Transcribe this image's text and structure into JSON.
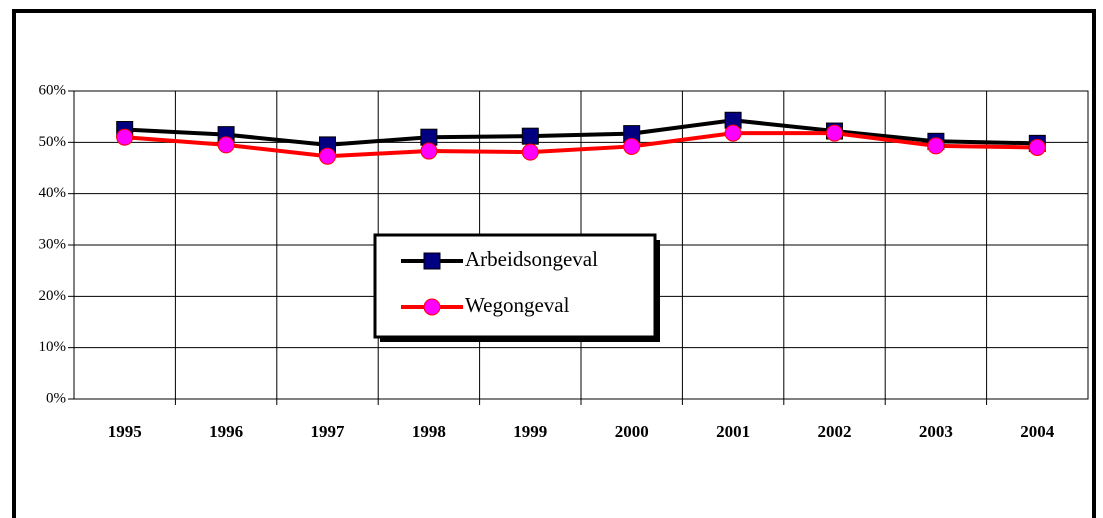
{
  "chart_data": {
    "type": "line",
    "categories": [
      "1995",
      "1996",
      "1997",
      "1998",
      "1999",
      "2000",
      "2001",
      "2002",
      "2003",
      "2004"
    ],
    "series": [
      {
        "name": "Arbeidsongeval",
        "color": "#000000",
        "marker_color": "#000080",
        "marker": "square",
        "values": [
          52.5,
          51.5,
          49.5,
          51,
          51.2,
          51.7,
          54.3,
          52.2,
          50.2,
          49.8
        ]
      },
      {
        "name": "Wegongeval",
        "color": "#ff0000",
        "marker_color": "#ff00ff",
        "marker": "circle",
        "values": [
          51,
          49.5,
          47.3,
          48.3,
          48.1,
          49.2,
          51.8,
          51.8,
          49.3,
          49
        ]
      }
    ],
    "ylim": [
      0,
      60
    ],
    "yticks": [
      {
        "value": 0,
        "label": "0%"
      },
      {
        "value": 10,
        "label": "10%"
      },
      {
        "value": 20,
        "label": "20%"
      },
      {
        "value": 30,
        "label": "30%"
      },
      {
        "value": 40,
        "label": "40%"
      },
      {
        "value": 50,
        "label": "50%"
      },
      {
        "value": 60,
        "label": "60%"
      }
    ],
    "grid": true
  }
}
